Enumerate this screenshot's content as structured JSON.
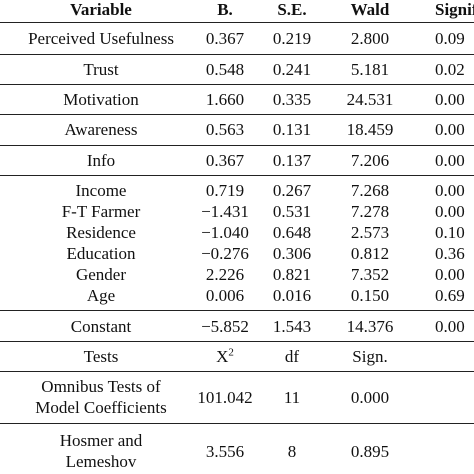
{
  "table": {
    "header": [
      "Variable",
      "B.",
      "S.E.",
      "Wald",
      "Signif"
    ],
    "rows": [
      [
        "Perceived Usefulness",
        "0.367",
        "0.219",
        "2.800",
        "0.09"
      ],
      [
        "Trust",
        "0.548",
        "0.241",
        "5.181",
        "0.02"
      ],
      [
        "Motivation",
        "1.660",
        "0.335",
        "24.531",
        "0.00"
      ],
      [
        "Awareness",
        "0.563",
        "0.131",
        "18.459",
        "0.00"
      ],
      [
        "Info",
        "0.367",
        "0.137",
        "7.206",
        "0.00"
      ],
      [
        "Income",
        "0.719",
        "0.267",
        "7.268",
        "0.00"
      ],
      [
        "F-T Farmer",
        "−1.431",
        "0.531",
        "7.278",
        "0.00"
      ],
      [
        "Residence",
        "−1.040",
        "0.648",
        "2.573",
        "0.10"
      ],
      [
        "Education",
        "−0.276",
        "0.306",
        "0.812",
        "0.36"
      ],
      [
        "Gender",
        "2.226",
        "0.821",
        "7.352",
        "0.00"
      ],
      [
        "Age",
        "0.006",
        "0.016",
        "0.150",
        "0.69"
      ],
      [
        "Constant",
        "−5.852",
        "1.543",
        "14.376",
        "0.00"
      ]
    ],
    "tests_header": [
      "Tests",
      "X",
      "df",
      "Sign."
    ],
    "tests_header_sup": "2",
    "tests": [
      [
        "Omnibus Tests of",
        "Model Coefficients",
        "101.042",
        "11",
        "0.000"
      ],
      [
        "Hosmer and",
        "Lemeshov",
        "3.556",
        "8",
        "0.895"
      ]
    ]
  }
}
